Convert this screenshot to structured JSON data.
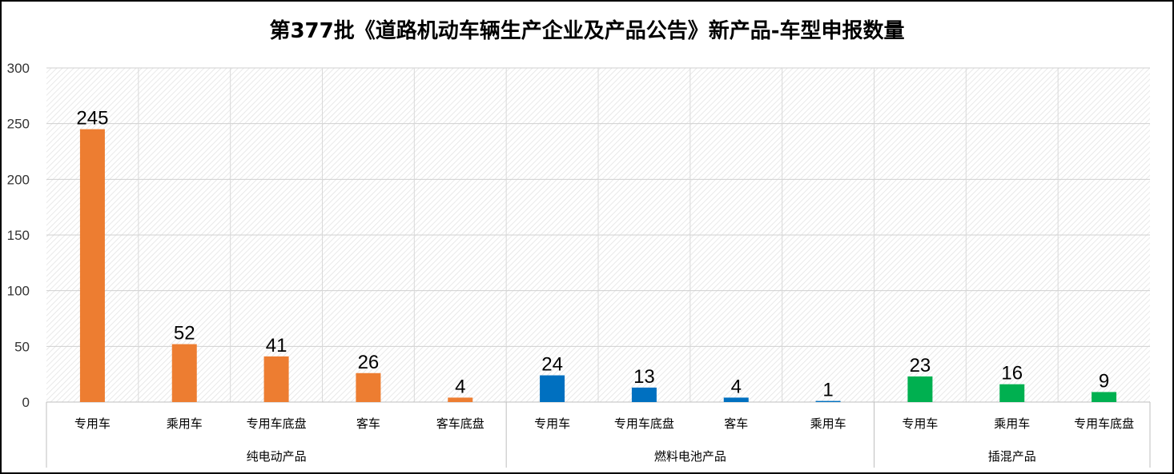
{
  "chart_data": {
    "type": "bar",
    "title": "第377批《道路机动车辆生产企业及产品公告》新产品-车型申报数量",
    "ylim": [
      0,
      300
    ],
    "yticks": [
      0,
      50,
      100,
      150,
      200,
      250,
      300
    ],
    "grid": true,
    "legend": "none",
    "groups": [
      {
        "name": "纯电动产品",
        "color": "#ED7D31",
        "categories": [
          "专用车",
          "乘用车",
          "专用车底盘",
          "客车",
          "客车底盘"
        ],
        "values": [
          245,
          52,
          41,
          26,
          4
        ]
      },
      {
        "name": "燃料电池产品",
        "color": "#0070C0",
        "categories": [
          "专用车",
          "专用车底盘",
          "客车",
          "乘用车"
        ],
        "values": [
          24,
          13,
          4,
          1
        ]
      },
      {
        "name": "插混产品",
        "color": "#00B050",
        "categories": [
          "专用车",
          "乘用车",
          "专用车底盘"
        ],
        "values": [
          23,
          16,
          9
        ]
      }
    ]
  }
}
